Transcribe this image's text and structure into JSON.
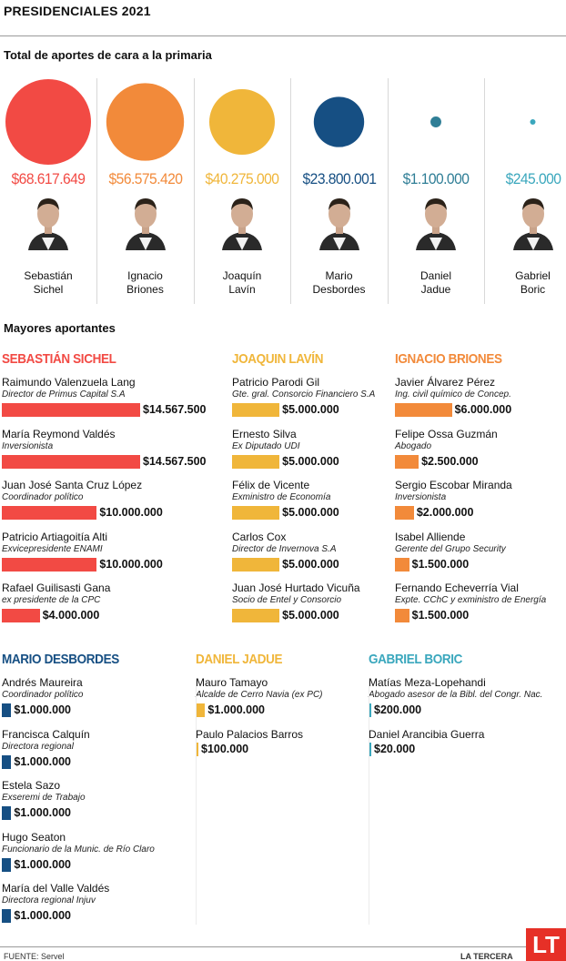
{
  "header": {
    "title": "PRESIDENCIALES 2021"
  },
  "chart_data": {
    "type": "bubble",
    "title": "Total de aportes de cara a la primaria",
    "categories": [
      "Sebastián Sichel",
      "Ignacio Briones",
      "Joaquín Lavín",
      "Mario Desbordes",
      "Daniel Jadue",
      "Gabriel Boric"
    ],
    "values": [
      68617649,
      56575420,
      40275000,
      23800001,
      1100000,
      245000
    ],
    "value_labels": [
      "$68.617.649",
      "$56.575.420",
      "$40.275.000",
      "$23.800.001",
      "$1.100.000",
      "$245.000"
    ],
    "colors": [
      "#f24a44",
      "#f28a3a",
      "#f0b63a",
      "#164f83",
      "#2f7e96",
      "#3aa7bd"
    ],
    "candidates": [
      {
        "line1": "Sebastián",
        "line2": "Sichel"
      },
      {
        "line1": "Ignacio",
        "line2": "Briones"
      },
      {
        "line1": "Joaquín",
        "line2": "Lavín"
      },
      {
        "line1": "Mario",
        "line2": "Desbordes"
      },
      {
        "line1": "Daniel",
        "line2": "Jadue"
      },
      {
        "line1": "Gabriel",
        "line2": "Boric"
      }
    ]
  },
  "mayores": {
    "title": "Mayores aportantes",
    "groups": [
      {
        "name": "SEBASTIÁN SICHEL",
        "color": "#f24a44",
        "donors": [
          {
            "name": "Raimundo Valenzuela Lang",
            "role": "Director de Primus Capital S.A",
            "amount": 14567500,
            "label": "$14.567.500"
          },
          {
            "name": "María Reymond Valdés",
            "role": "Inversionista",
            "amount": 14567500,
            "label": "$14.567.500"
          },
          {
            "name": "Juan José Santa Cruz López",
            "role": "Coordinador político",
            "amount": 10000000,
            "label": "$10.000.000"
          },
          {
            "name": "Patricio Artiagoitía Alti",
            "role": "Exvicepresidente ENAMI",
            "amount": 10000000,
            "label": "$10.000.000"
          },
          {
            "name": "Rafael Guilisasti Gana",
            "role": "ex presidente de la CPC",
            "amount": 4000000,
            "label": "$4.000.000"
          }
        ]
      },
      {
        "name": "JOAQUIN LAVÍN",
        "color": "#f0b63a",
        "donors": [
          {
            "name": "Patricio Parodi Gil",
            "role": "Gte. gral. Consorcio Financiero S.A",
            "amount": 5000000,
            "label": "$5.000.000"
          },
          {
            "name": "Ernesto Silva",
            "role": "Ex Diputado UDI",
            "amount": 5000000,
            "label": "$5.000.000"
          },
          {
            "name": "Félix de Vicente",
            "role": "Exministro de Economía",
            "amount": 5000000,
            "label": "$5.000.000"
          },
          {
            "name": "Carlos Cox",
            "role": "Director de Invernova S.A",
            "amount": 5000000,
            "label": "$5.000.000"
          },
          {
            "name": "Juan José Hurtado Vicuña",
            "role": "Socio de Entel y Consorcio",
            "amount": 5000000,
            "label": "$5.000.000"
          }
        ]
      },
      {
        "name": "IGNACIO BRIONES",
        "color": "#f28a3a",
        "donors": [
          {
            "name": "Javier Álvarez Pérez",
            "role": "Ing. civil químico de Concep.",
            "amount": 6000000,
            "label": "$6.000.000"
          },
          {
            "name": "Felipe Ossa Guzmán",
            "role": "Abogado",
            "amount": 2500000,
            "label": "$2.500.000"
          },
          {
            "name": "Sergio Escobar Miranda",
            "role": "Inversionista",
            "amount": 2000000,
            "label": "$2.000.000"
          },
          {
            "name": "Isabel Alliende",
            "role": "Gerente del Grupo Security",
            "amount": 1500000,
            "label": "$1.500.000"
          },
          {
            "name": "Fernando Echeverría Vial",
            "role": "Expte. CChC y exministro de Energía",
            "amount": 1500000,
            "label": "$1.500.000"
          }
        ]
      },
      {
        "name": "MARIO DESBORDES",
        "color": "#164f83",
        "donors": [
          {
            "name": "Andrés Maureira",
            "role": "Coordinador político",
            "amount": 1000000,
            "label": "$1.000.000"
          },
          {
            "name": "Francisca Calquín",
            "role": "Directora regional",
            "amount": 1000000,
            "label": "$1.000.000"
          },
          {
            "name": "Estela Sazo",
            "role": "Exseremi de Trabajo",
            "amount": 1000000,
            "label": "$1.000.000"
          },
          {
            "name": "Hugo Seaton",
            "role": "Funcionario de la Munic. de Río Claro",
            "amount": 1000000,
            "label": "$1.000.000"
          },
          {
            "name": "María del Valle Valdés",
            "role": "Directora regional Injuv",
            "amount": 1000000,
            "label": "$1.000.000"
          }
        ]
      },
      {
        "name": "DANIEL JADUE",
        "color": "#f0b63a",
        "donors": [
          {
            "name": "Mauro Tamayo",
            "role": "Alcalde de Cerro Navia (ex PC)",
            "amount": 1000000,
            "label": "$1.000.000"
          },
          {
            "name": "Paulo Palacios Barros",
            "role": "",
            "amount": 100000,
            "label": "$100.000"
          }
        ]
      },
      {
        "name": "GABRIEL BORIC",
        "color": "#3aa7bd",
        "donors": [
          {
            "name": "Matías Meza-Lopehandi",
            "role": "Abogado asesor de la Bibl. del Congr. Nac.",
            "amount": 200000,
            "label": "$200.000"
          },
          {
            "name": "Daniel Arancibia Guerra",
            "role": "",
            "amount": 20000,
            "label": "$20.000"
          }
        ]
      }
    ]
  },
  "footer": {
    "source": "FUENTE: Servel",
    "brand": "LA TERCERA",
    "logo": "LT"
  }
}
